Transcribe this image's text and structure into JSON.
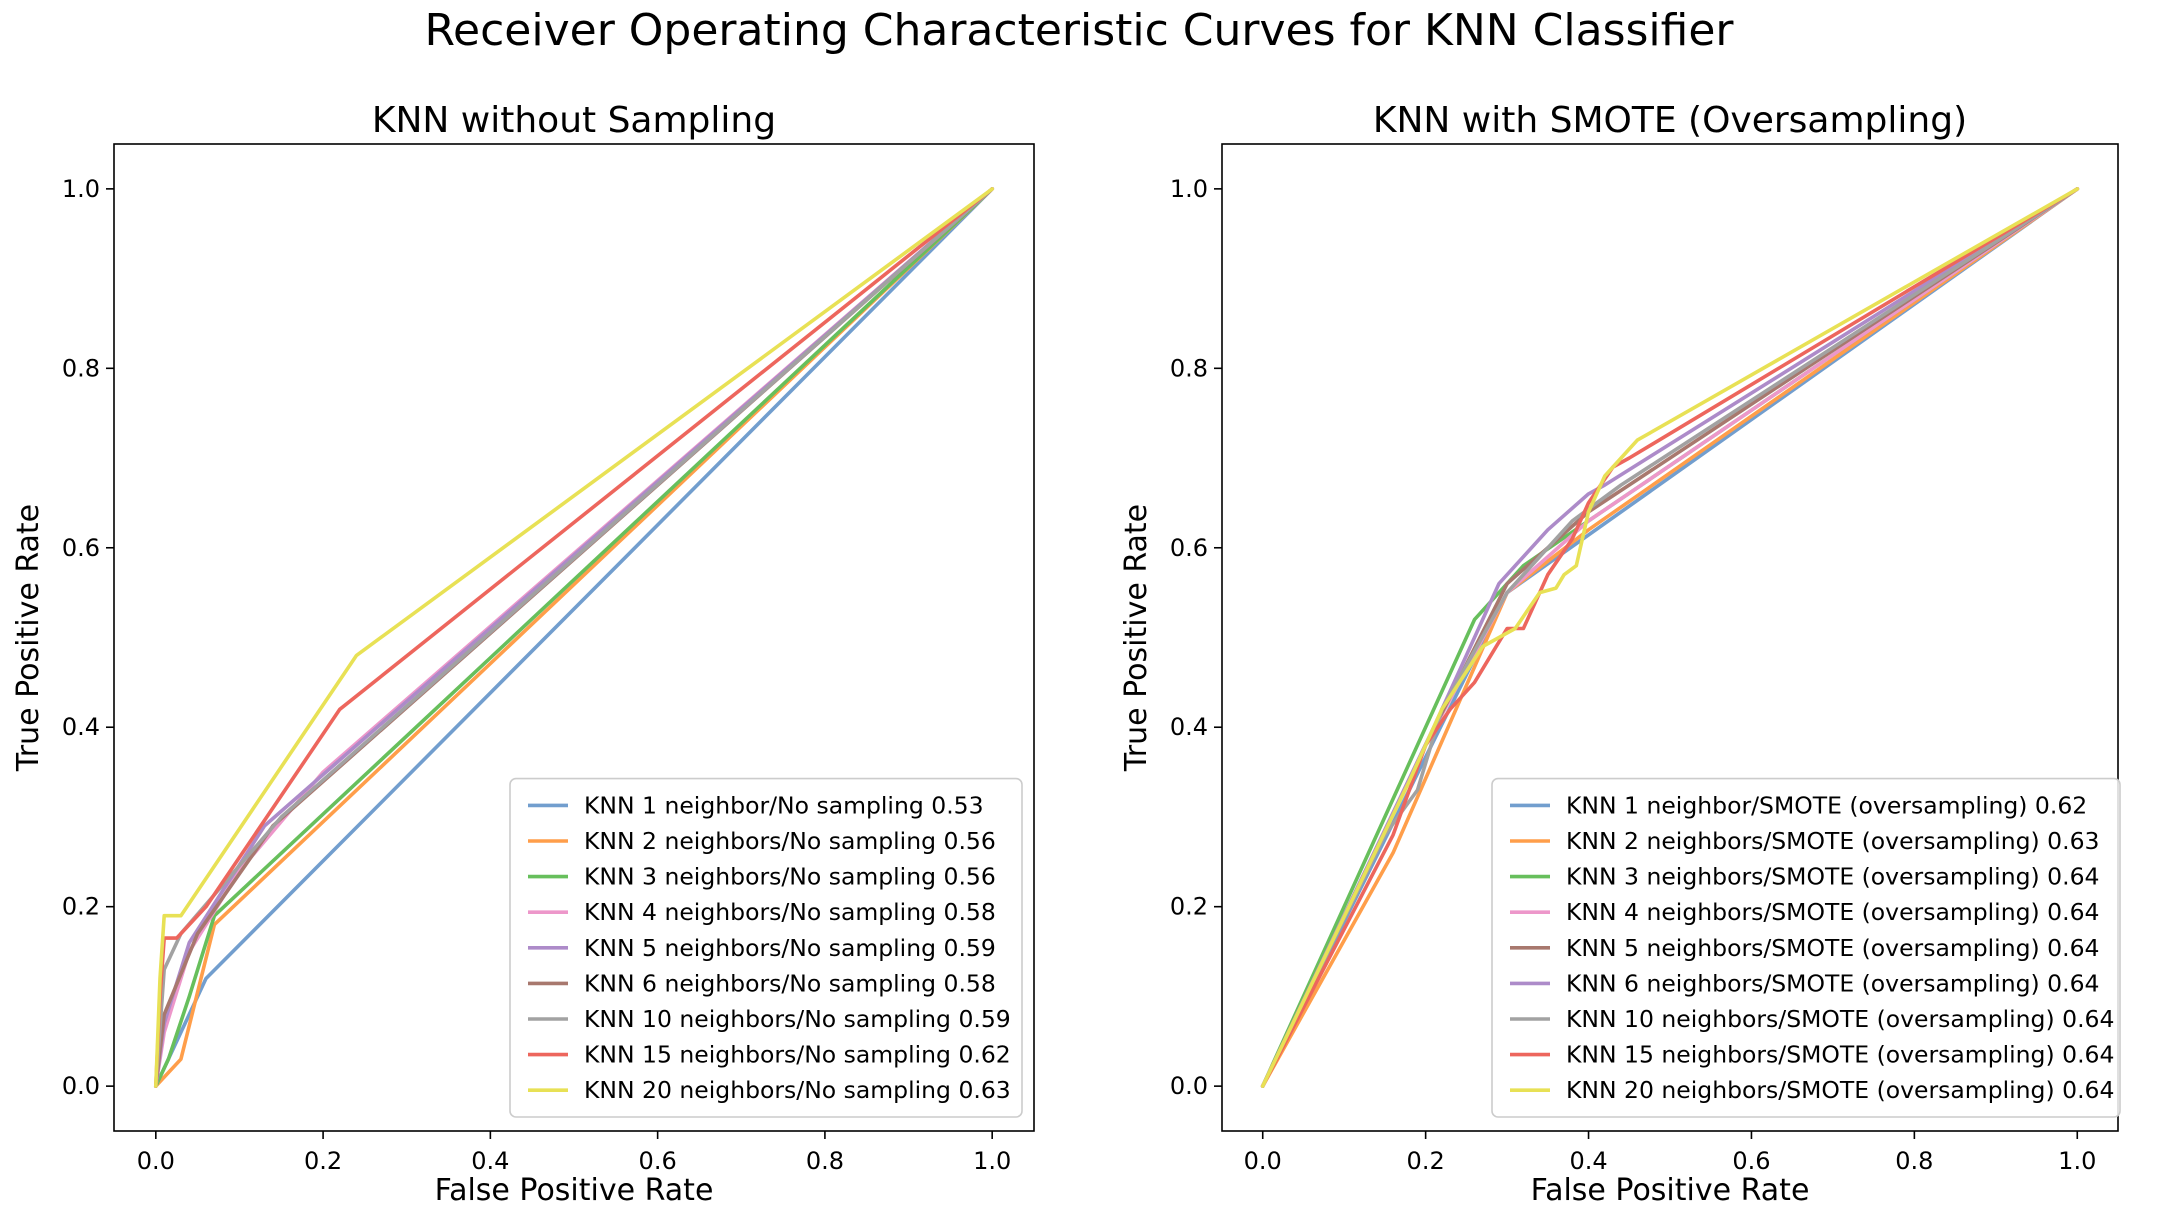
{
  "figure": {
    "title": "Receiver Operating Characteristic Curves for KNN Classifier"
  },
  "chart_data": [
    {
      "type": "line",
      "title": "KNN without Sampling",
      "xlabel": "False Positive Rate",
      "ylabel": "True Positive Rate",
      "xlim": [
        -0.05,
        1.05
      ],
      "ylim": [
        -0.05,
        1.05
      ],
      "xticks": [
        "0.0",
        "0.2",
        "0.4",
        "0.6",
        "0.8",
        "1.0"
      ],
      "yticks": [
        "0.0",
        "0.2",
        "0.4",
        "0.6",
        "0.8",
        "1.0"
      ],
      "grid": false,
      "legend_position": "lower-right",
      "series": [
        {
          "name": "KNN 1 neighbor/No sampling 0.53",
          "color": "#729ece",
          "points": [
            [
              0,
              0
            ],
            [
              0.06,
              0.12
            ],
            [
              1,
              1
            ]
          ]
        },
        {
          "name": "KNN 2 neighbors/No sampling 0.56",
          "color": "#ff9e4a",
          "points": [
            [
              0,
              0
            ],
            [
              0.03,
              0.03
            ],
            [
              0.07,
              0.18
            ],
            [
              1,
              1
            ]
          ]
        },
        {
          "name": "KNN 3 neighbors/No sampling 0.56",
          "color": "#67bf5c",
          "points": [
            [
              0,
              0
            ],
            [
              0.015,
              0.03
            ],
            [
              0.04,
              0.1
            ],
            [
              0.07,
              0.19
            ],
            [
              1,
              1
            ]
          ]
        },
        {
          "name": "KNN 4 neighbors/No sampling 0.58",
          "color": "#ed97ca",
          "points": [
            [
              0,
              0
            ],
            [
              0.01,
              0.06
            ],
            [
              0.04,
              0.15
            ],
            [
              0.1,
              0.24
            ],
            [
              0.2,
              0.35
            ],
            [
              1,
              1
            ]
          ]
        },
        {
          "name": "KNN 5 neighbors/No sampling 0.59",
          "color": "#ad8bc9",
          "points": [
            [
              0,
              0
            ],
            [
              0.01,
              0.07
            ],
            [
              0.04,
              0.16
            ],
            [
              0.13,
              0.29
            ],
            [
              1,
              1
            ]
          ]
        },
        {
          "name": "KNN 6 neighbors/No sampling 0.58",
          "color": "#a8786e",
          "points": [
            [
              0,
              0
            ],
            [
              0.01,
              0.08
            ],
            [
              0.05,
              0.17
            ],
            [
              0.14,
              0.29
            ],
            [
              1,
              1
            ]
          ]
        },
        {
          "name": "KNN 10 neighbors/No sampling 0.59",
          "color": "#a2a2a2",
          "points": [
            [
              0,
              0
            ],
            [
              0.01,
              0.13
            ],
            [
              0.03,
              0.17
            ],
            [
              0.15,
              0.3
            ],
            [
              1,
              1
            ]
          ]
        },
        {
          "name": "KNN 15 neighbors/No sampling 0.62",
          "color": "#ed665d",
          "points": [
            [
              0,
              0
            ],
            [
              0.005,
              0.1
            ],
            [
              0.01,
              0.165
            ],
            [
              0.025,
              0.165
            ],
            [
              0.06,
              0.2
            ],
            [
              0.22,
              0.42
            ],
            [
              1,
              1
            ]
          ]
        },
        {
          "name": "KNN 20 neighbors/No sampling 0.63",
          "color": "#e8e155",
          "points": [
            [
              0,
              0
            ],
            [
              0.005,
              0.12
            ],
            [
              0.01,
              0.19
            ],
            [
              0.03,
              0.19
            ],
            [
              0.24,
              0.48
            ],
            [
              1,
              1
            ]
          ]
        }
      ]
    },
    {
      "type": "line",
      "title": "KNN with SMOTE (Oversampling)",
      "xlabel": "False Positive Rate",
      "ylabel": "True Positive Rate",
      "xlim": [
        -0.05,
        1.05
      ],
      "ylim": [
        -0.05,
        1.05
      ],
      "xticks": [
        "0.0",
        "0.2",
        "0.4",
        "0.6",
        "0.8",
        "1.0"
      ],
      "yticks": [
        "0.0",
        "0.2",
        "0.4",
        "0.6",
        "0.8",
        "1.0"
      ],
      "grid": false,
      "legend_position": "lower-right",
      "series": [
        {
          "name": "KNN 1 neighbor/SMOTE (oversampling) 0.62",
          "color": "#729ece",
          "points": [
            [
              0,
              0
            ],
            [
              0.3,
              0.55
            ],
            [
              1,
              1
            ]
          ]
        },
        {
          "name": "KNN 2 neighbors/SMOTE (oversampling) 0.63",
          "color": "#ff9e4a",
          "points": [
            [
              0,
              0
            ],
            [
              0.16,
              0.26
            ],
            [
              0.3,
              0.55
            ],
            [
              0.4,
              0.62
            ],
            [
              1,
              1
            ]
          ]
        },
        {
          "name": "KNN 3 neighbors/SMOTE (oversampling) 0.64",
          "color": "#67bf5c",
          "points": [
            [
              0,
              0
            ],
            [
              0.2,
              0.4
            ],
            [
              0.26,
              0.52
            ],
            [
              0.32,
              0.58
            ],
            [
              0.4,
              0.63
            ],
            [
              1,
              1
            ]
          ]
        },
        {
          "name": "KNN 4 neighbors/SMOTE (oversampling) 0.64",
          "color": "#ed97ca",
          "points": [
            [
              0,
              0
            ],
            [
              0.2,
              0.38
            ],
            [
              0.3,
              0.55
            ],
            [
              0.4,
              0.63
            ],
            [
              1,
              1
            ]
          ]
        },
        {
          "name": "KNN 5 neighbors/SMOTE (oversampling) 0.64",
          "color": "#a8786e",
          "points": [
            [
              0,
              0
            ],
            [
              0.2,
              0.38
            ],
            [
              0.3,
              0.56
            ],
            [
              0.4,
              0.64
            ],
            [
              1,
              1
            ]
          ]
        },
        {
          "name": "KNN 6 neighbors/SMOTE (oversampling) 0.64",
          "color": "#ad8bc9",
          "points": [
            [
              0,
              0
            ],
            [
              0.21,
              0.4
            ],
            [
              0.29,
              0.56
            ],
            [
              0.35,
              0.62
            ],
            [
              0.4,
              0.66
            ],
            [
              0.42,
              0.67
            ],
            [
              1,
              1
            ]
          ]
        },
        {
          "name": "KNN 10 neighbors/SMOTE (oversampling) 0.64",
          "color": "#a2a2a2",
          "points": [
            [
              0,
              0
            ],
            [
              0.15,
              0.28
            ],
            [
              0.19,
              0.33
            ],
            [
              0.22,
              0.42
            ],
            [
              0.3,
              0.55
            ],
            [
              0.38,
              0.63
            ],
            [
              0.44,
              0.67
            ],
            [
              1,
              1
            ]
          ]
        },
        {
          "name": "KNN 15 neighbors/SMOTE (oversampling) 0.64",
          "color": "#ed665d",
          "points": [
            [
              0,
              0
            ],
            [
              0.16,
              0.28
            ],
            [
              0.2,
              0.38
            ],
            [
              0.23,
              0.42
            ],
            [
              0.26,
              0.45
            ],
            [
              0.3,
              0.51
            ],
            [
              0.32,
              0.51
            ],
            [
              0.35,
              0.57
            ],
            [
              0.38,
              0.61
            ],
            [
              0.4,
              0.65
            ],
            [
              0.43,
              0.69
            ],
            [
              0.45,
              0.7
            ],
            [
              1,
              1
            ]
          ]
        },
        {
          "name": "KNN 20 neighbors/SMOTE (oversampling) 0.64",
          "color": "#e8e155",
          "points": [
            [
              0,
              0
            ],
            [
              0.18,
              0.34
            ],
            [
              0.22,
              0.42
            ],
            [
              0.27,
              0.49
            ],
            [
              0.31,
              0.51
            ],
            [
              0.34,
              0.55
            ],
            [
              0.36,
              0.555
            ],
            [
              0.37,
              0.57
            ],
            [
              0.385,
              0.58
            ],
            [
              0.4,
              0.64
            ],
            [
              0.42,
              0.68
            ],
            [
              0.44,
              0.7
            ],
            [
              0.46,
              0.72
            ],
            [
              1,
              1
            ]
          ]
        }
      ]
    }
  ]
}
